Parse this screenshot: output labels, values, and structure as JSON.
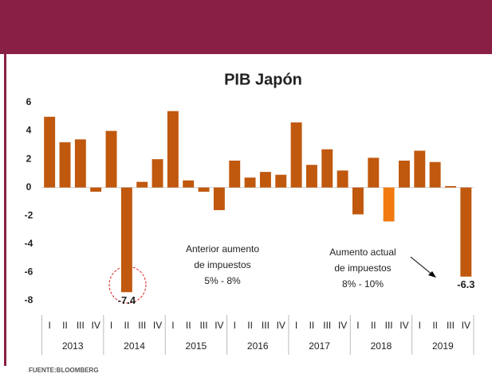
{
  "chart_data": {
    "type": "bar",
    "title": "PIB Japón",
    "categories": [
      "I",
      "II",
      "III",
      "IV",
      "I",
      "II",
      "III",
      "IV",
      "I",
      "II",
      "III",
      "IV",
      "I",
      "II",
      "III",
      "IV",
      "I",
      "II",
      "III",
      "IV",
      "I",
      "II",
      "III",
      "IV",
      "I",
      "II",
      "III",
      "IV"
    ],
    "groups": [
      "2013",
      "2014",
      "2015",
      "2016",
      "2017",
      "2018",
      "2019"
    ],
    "values": [
      5.0,
      3.2,
      3.4,
      -0.3,
      4.0,
      -7.4,
      0.4,
      2.0,
      5.4,
      0.5,
      -0.3,
      -1.6,
      1.9,
      0.7,
      1.1,
      0.9,
      4.6,
      1.6,
      2.7,
      1.2,
      -1.9,
      2.1,
      -2.4,
      1.9,
      2.6,
      1.8,
      0.1,
      -6.3
    ],
    "value_labels": [
      null,
      null,
      null,
      null,
      null,
      "-7.4",
      null,
      null,
      null,
      null,
      null,
      null,
      null,
      null,
      null,
      null,
      null,
      null,
      null,
      null,
      null,
      null,
      null,
      null,
      null,
      null,
      null,
      "-6.3"
    ],
    "colors": [
      "#c0580e",
      "#c0580e",
      "#c0580e",
      "#c0580e",
      "#c0580e",
      "#c0580e",
      "#c0580e",
      "#c0580e",
      "#c0580e",
      "#c0580e",
      "#c0580e",
      "#c0580e",
      "#c0580e",
      "#c0580e",
      "#c0580e",
      "#c0580e",
      "#c0580e",
      "#c0580e",
      "#c0580e",
      "#c0580e",
      "#c0580e",
      "#c0580e",
      "#f07a10",
      "#c0580e",
      "#c0580e",
      "#c0580e",
      "#c0580e",
      "#c0580e"
    ],
    "ylim": [
      -8,
      6
    ],
    "yticks": [
      -8,
      -6,
      -4,
      -2,
      0,
      2,
      4,
      6
    ],
    "annotations": [
      [
        "Anterior aumento",
        "de impuestos",
        "5% - 8%"
      ],
      [
        "Aumento actual",
        "de impuestos",
        "8% - 10%"
      ]
    ],
    "source": "FUENTE:BLOOMBERG"
  }
}
